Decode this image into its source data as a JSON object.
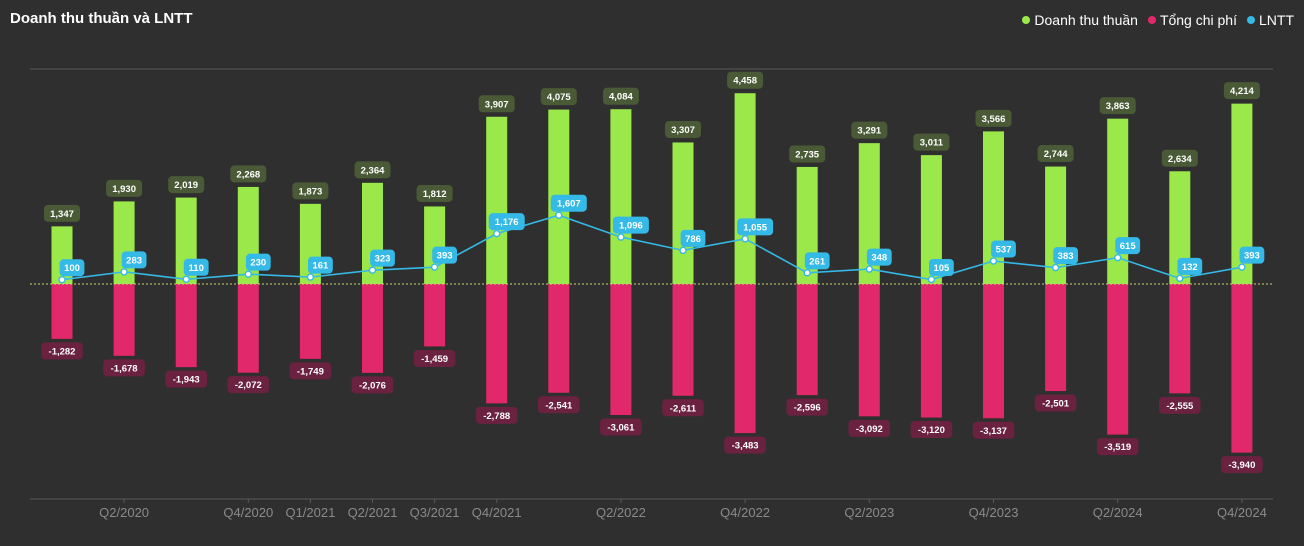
{
  "title": "Doanh thu thuần và LNTT",
  "legend": [
    {
      "label": "Doanh thu thuần",
      "color": "#9be84a"
    },
    {
      "label": "Tổng chi phí",
      "color": "#e0286a"
    },
    {
      "label": "LNTT",
      "color": "#35b9e6"
    }
  ],
  "chart_data": {
    "type": "bar",
    "title": "Doanh thu thuần và LNTT",
    "xlabel": "",
    "ylabel": "",
    "legend_position": "top-right",
    "grid": false,
    "ylim": [
      -4200,
      4750
    ],
    "categories": [
      "Q1/2020",
      "Q2/2020",
      "Q3/2020",
      "Q4/2020",
      "Q1/2021",
      "Q2/2021",
      "Q3/2021",
      "Q4/2021",
      "Q1/2022",
      "Q2/2022",
      "Q3/2022",
      "Q4/2022",
      "Q1/2023",
      "Q2/2023",
      "Q3/2023",
      "Q4/2023",
      "Q1/2024",
      "Q2/2024",
      "Q3/2024",
      "Q4/2024"
    ],
    "tick_labels": [
      "",
      "Q2/2020",
      "",
      "Q4/2020",
      "Q1/2021",
      "Q2/2021",
      "Q3/2021",
      "Q4/2021",
      "",
      "Q2/2022",
      "",
      "Q4/2022",
      "",
      "Q2/2023",
      "",
      "Q4/2023",
      "",
      "Q2/2024",
      "",
      "Q4/2024"
    ],
    "series": [
      {
        "name": "Doanh thu thuần",
        "type": "bar",
        "color": "#9be84a",
        "label_bg": "#4a5a36",
        "values": [
          1347,
          1930,
          2019,
          2268,
          1873,
          2364,
          1812,
          3907,
          4075,
          4084,
          3307,
          4458,
          2735,
          3291,
          3011,
          3566,
          2744,
          3863,
          2634,
          4214
        ],
        "labels": [
          "1,347",
          "1,930",
          "2,019",
          "2,268",
          "1,873",
          "2,364",
          "1,812",
          "3,907",
          "4,075",
          "4,084",
          "3,307",
          "4,458",
          "2,735",
          "3,291",
          "3,011",
          "3,566",
          "2,744",
          "3,863",
          "2,634",
          "4,214"
        ]
      },
      {
        "name": "Tổng chi phí",
        "type": "bar",
        "color": "#e0286a",
        "label_bg": "#6b2140",
        "values": [
          -1282,
          -1678,
          -1943,
          -2072,
          -1749,
          -2076,
          -1459,
          -2788,
          -2541,
          -3061,
          -2611,
          -3483,
          -2596,
          -3092,
          -3120,
          -3137,
          -2501,
          -3519,
          -2555,
          -3940
        ],
        "labels": [
          "-1,282",
          "-1,678",
          "-1,943",
          "-2,072",
          "-1,749",
          "-2,076",
          "-1,459",
          "-2,788",
          "-2,541",
          "-3,061",
          "-2,611",
          "-3,483",
          "-2,596",
          "-3,092",
          "-3,120",
          "-3,137",
          "-2,501",
          "-3,519",
          "-2,555",
          "-3,940"
        ]
      },
      {
        "name": "LNTT",
        "type": "line",
        "color": "#35b9e6",
        "label_bg": "#35b9e6",
        "values": [
          100,
          283,
          110,
          230,
          161,
          323,
          393,
          1176,
          1607,
          1096,
          786,
          1055,
          261,
          348,
          105,
          537,
          383,
          615,
          132,
          393
        ],
        "labels": [
          "100",
          "283",
          "110",
          "230",
          "161",
          "323",
          "393",
          "1,176",
          "1,607",
          "1,096",
          "786",
          "1,055",
          "261",
          "348",
          "105",
          "537",
          "383",
          "615",
          "132",
          "393"
        ]
      }
    ]
  }
}
